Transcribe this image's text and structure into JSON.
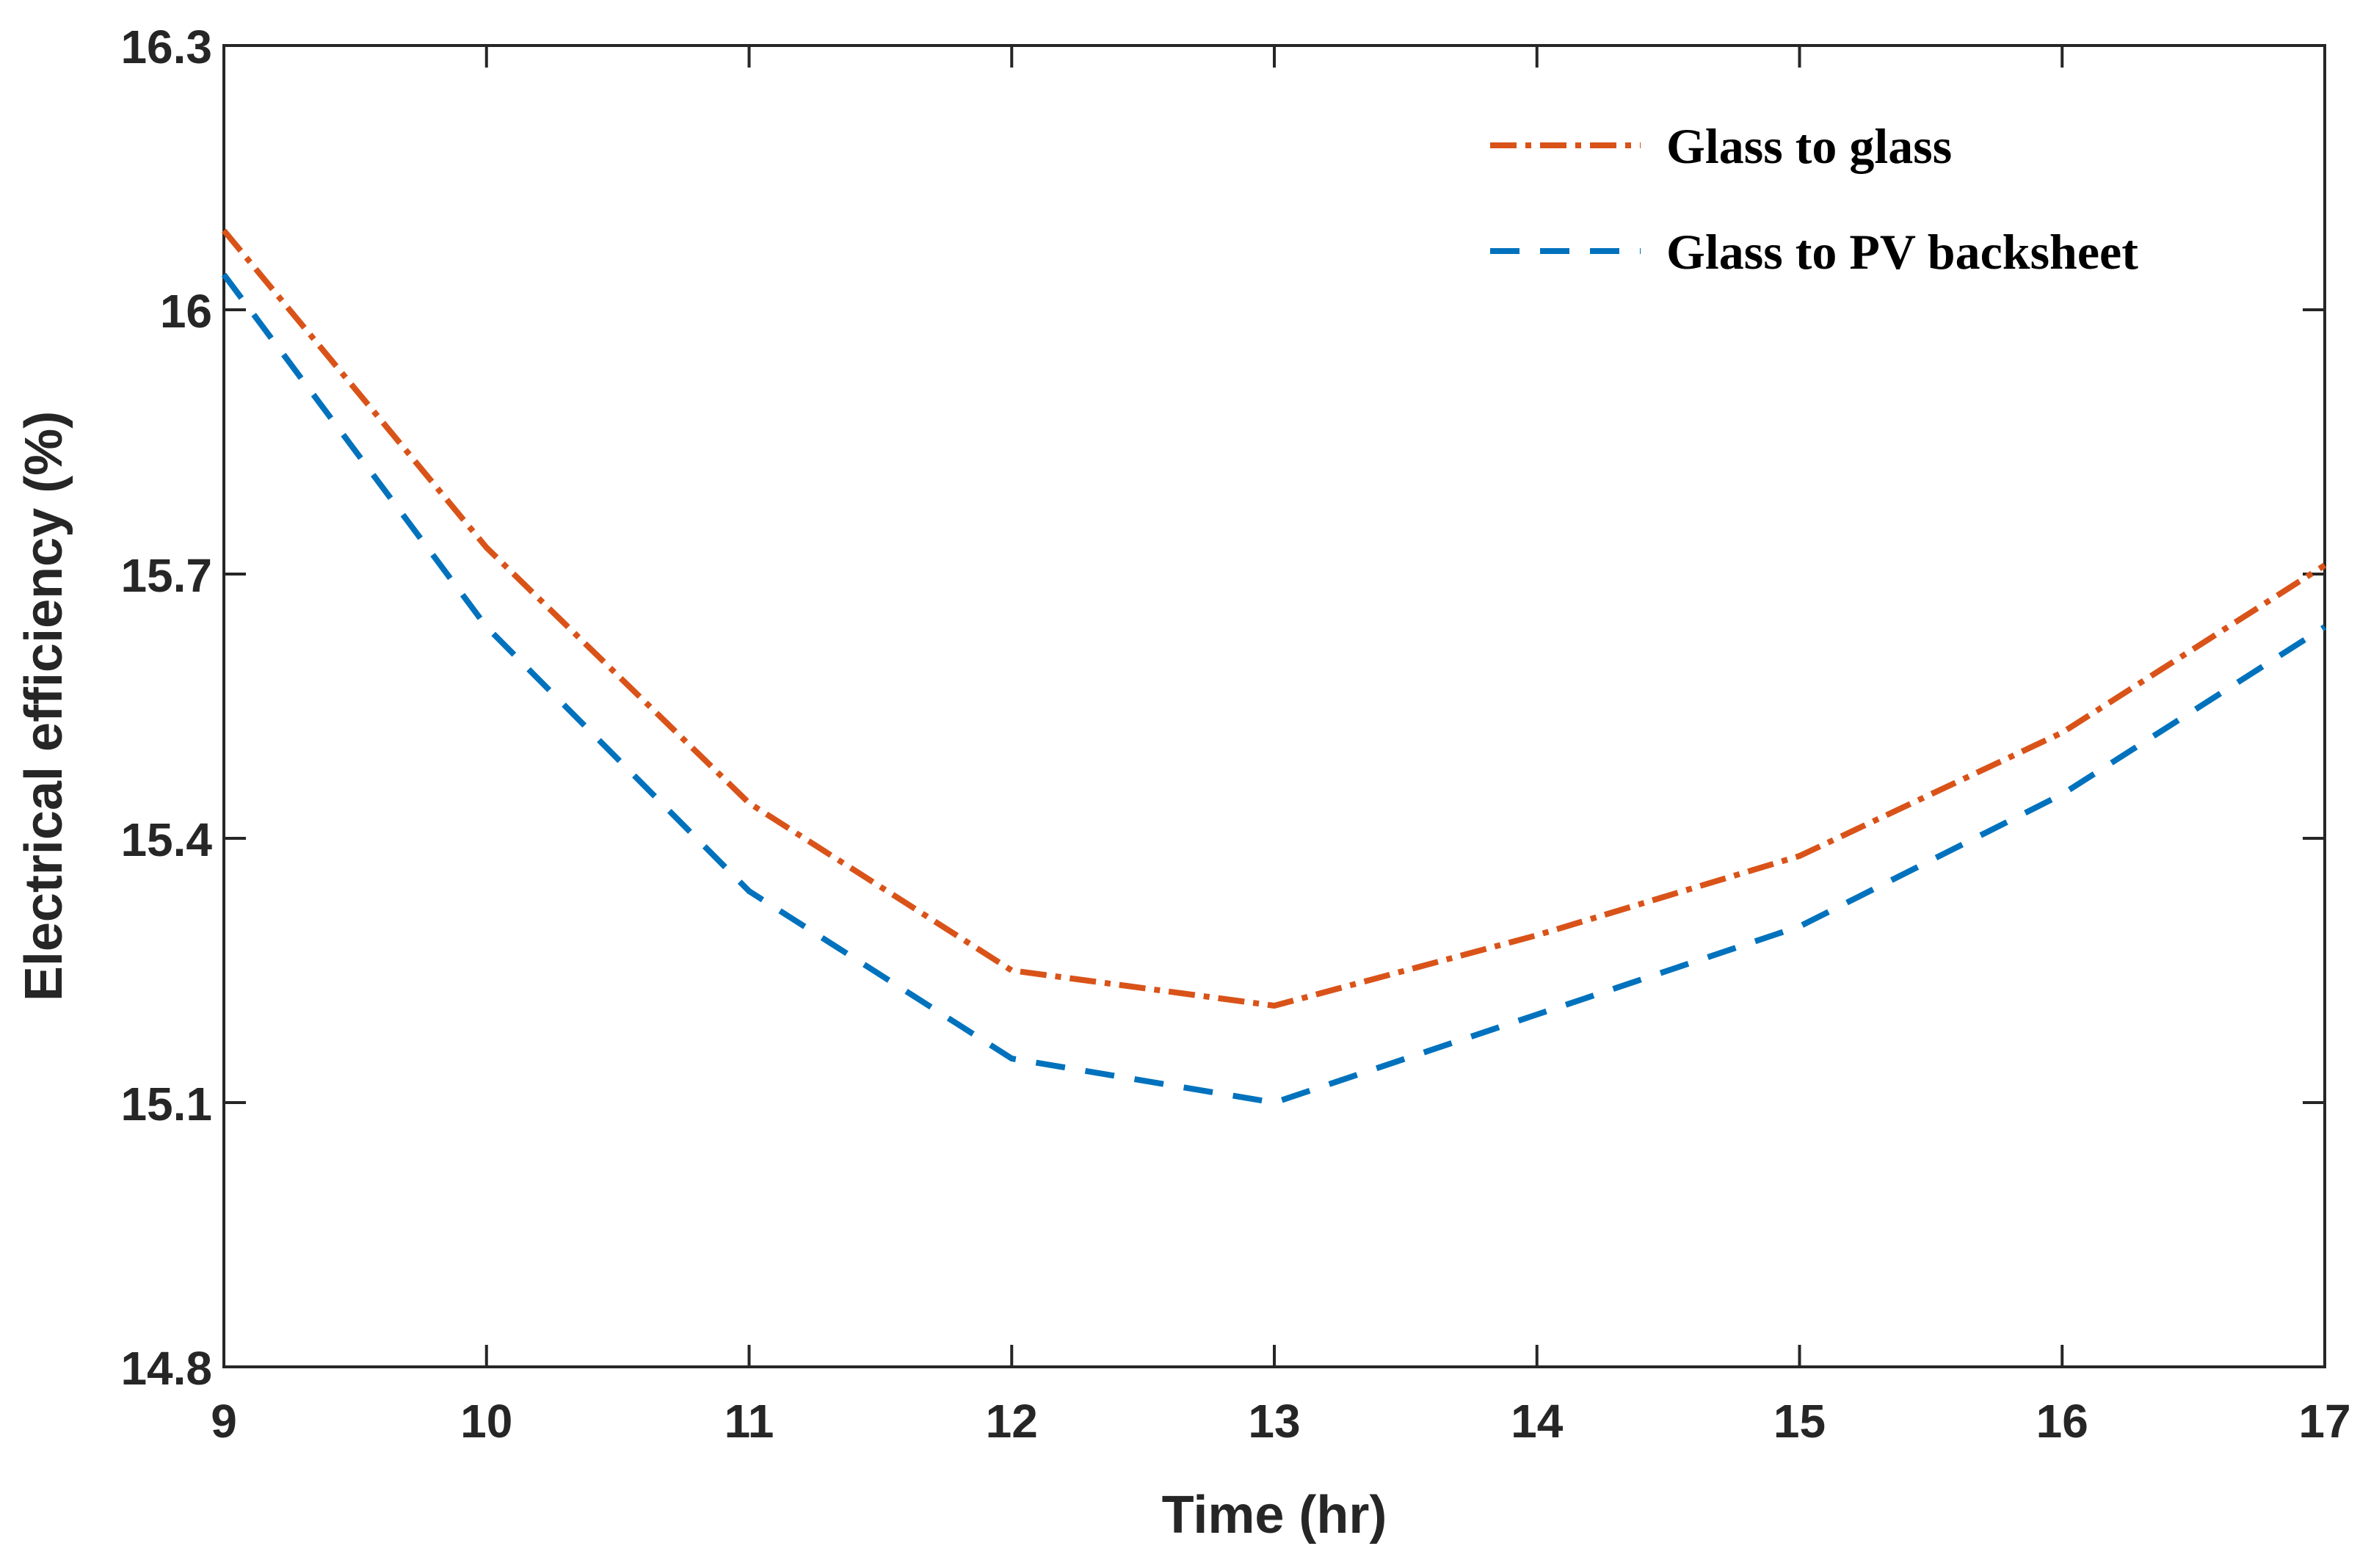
{
  "chart_data": {
    "type": "line",
    "title": "",
    "xlabel": "Time (hr)",
    "ylabel": "Electrical efficiency (%)",
    "xlim": [
      9,
      17
    ],
    "ylim": [
      14.8,
      16.3
    ],
    "xticks": [
      9,
      10,
      11,
      12,
      13,
      14,
      15,
      16,
      17
    ],
    "xtick_labels": [
      "9",
      "10",
      "11",
      "12",
      "13",
      "14",
      "15",
      "16",
      "17"
    ],
    "yticks": [
      14.8,
      15.1,
      15.4,
      15.7,
      16.0,
      16.3
    ],
    "ytick_labels": [
      "14.8",
      "15.1",
      "15.4",
      "15.7",
      "16",
      "16.3"
    ],
    "grid": false,
    "legend_position": "top-right",
    "x": [
      9,
      10,
      11,
      12,
      13,
      14,
      15,
      16,
      17
    ],
    "series": [
      {
        "name": "Glass to glass",
        "values": [
          16.09,
          15.73,
          15.44,
          15.25,
          15.21,
          15.29,
          15.38,
          15.52,
          15.71
        ],
        "color": "#d95319",
        "line_style": "dash-dot"
      },
      {
        "name": "Glass to PV backsheet",
        "values": [
          16.04,
          15.64,
          15.34,
          15.15,
          15.1,
          15.2,
          15.3,
          15.45,
          15.64
        ],
        "color": "#0072bd",
        "line_style": "dashed"
      }
    ]
  }
}
